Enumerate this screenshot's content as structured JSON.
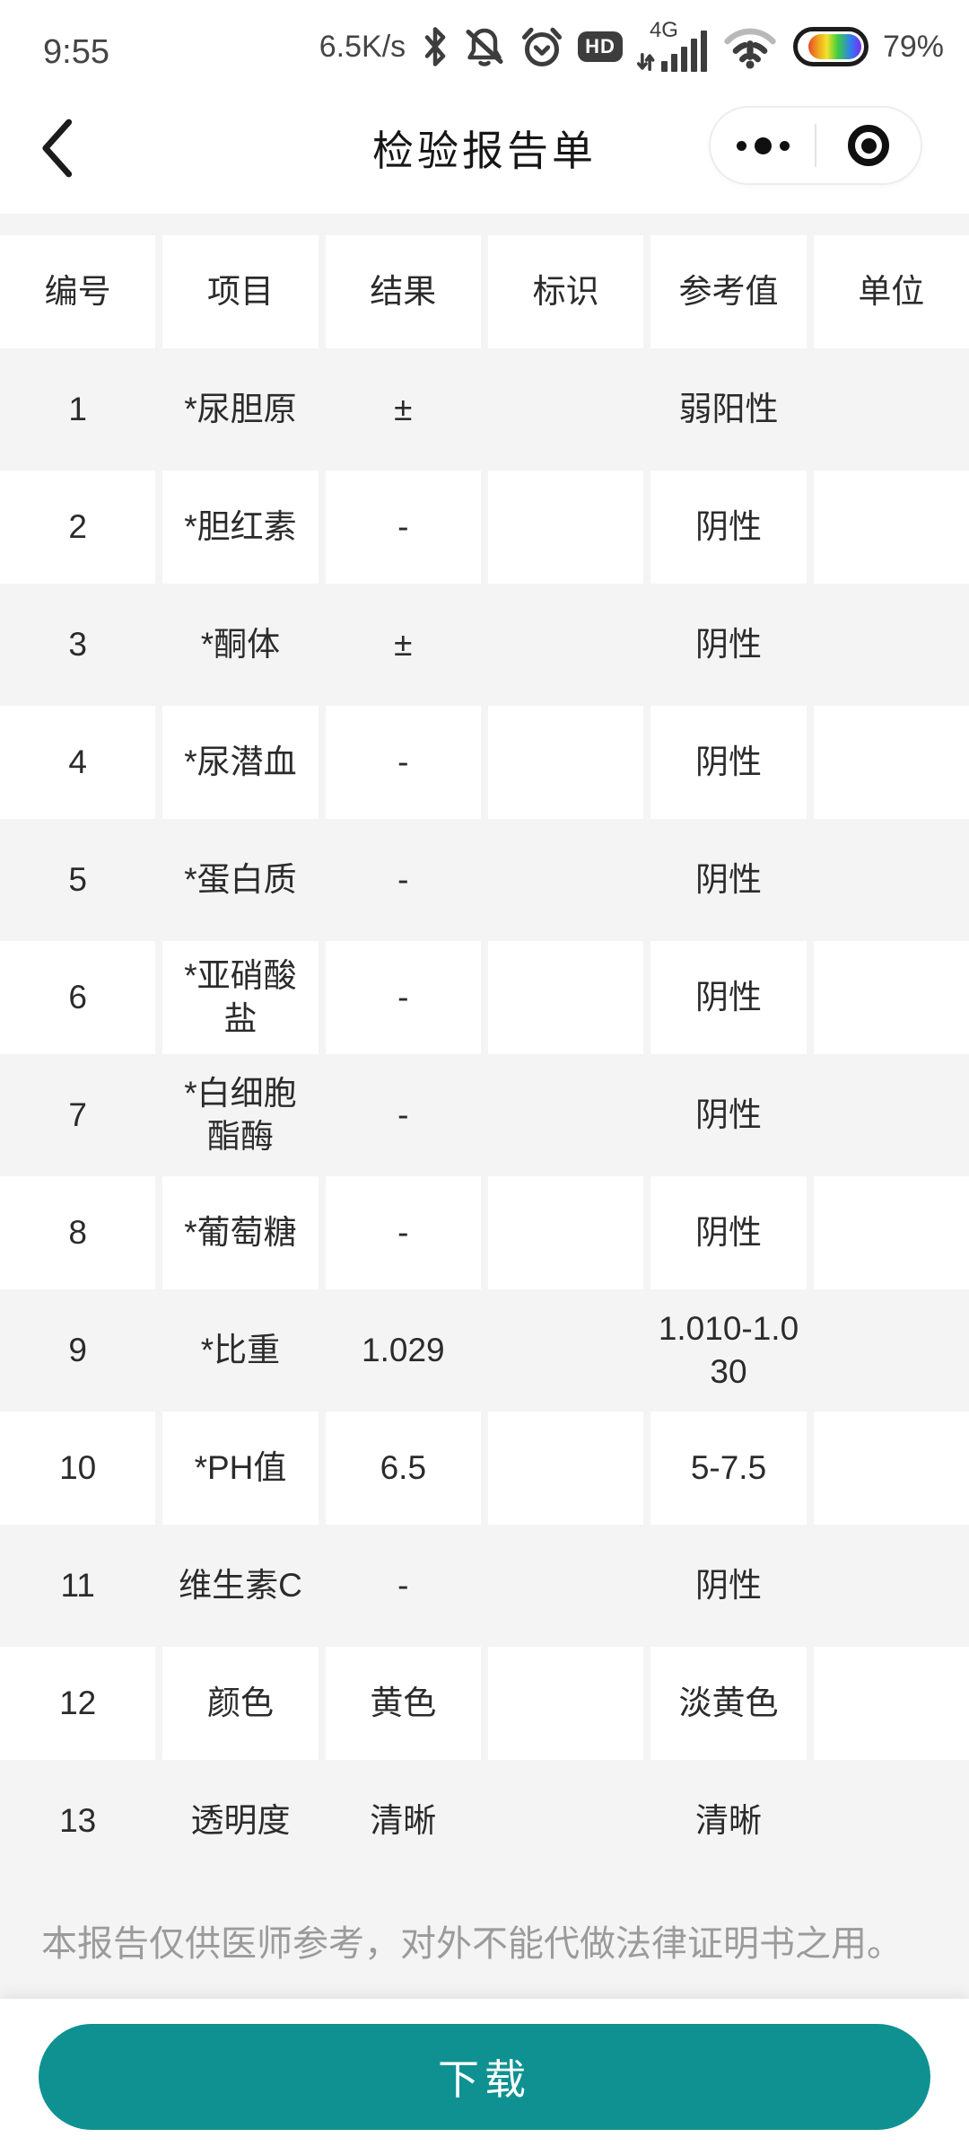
{
  "status_bar": {
    "time": "9:55",
    "net_speed": "6.5K/s",
    "network_label": "4G",
    "battery_percent": "79%",
    "icons": {
      "bluetooth": "bluetooth-icon",
      "mute": "muted-bell-icon",
      "alarm": "alarm-clock-icon",
      "hd": "HD",
      "signal": "signal-bars-icon",
      "wifi": "wifi-alert-icon",
      "battery": "battery-rainbow-icon"
    }
  },
  "nav": {
    "title": "检验报告单",
    "icons": {
      "back": "back-chevron-icon",
      "more": "more-dots-icon",
      "home": "target-circle-icon"
    }
  },
  "table": {
    "headers": [
      "编号",
      "项目",
      "结果",
      "标识",
      "参考值",
      "单位"
    ],
    "rows": [
      [
        "1",
        "*尿胆原",
        "±",
        "",
        "弱阳性",
        ""
      ],
      [
        "2",
        "*胆红素",
        "-",
        "",
        "阴性",
        ""
      ],
      [
        "3",
        "*酮体",
        "±",
        "",
        "阴性",
        ""
      ],
      [
        "4",
        "*尿潜血",
        "-",
        "",
        "阴性",
        ""
      ],
      [
        "5",
        "*蛋白质",
        "-",
        "",
        "阴性",
        ""
      ],
      [
        "6",
        "*亚硝酸盐",
        "-",
        "",
        "阴性",
        ""
      ],
      [
        "7",
        "*白细胞酯酶",
        "-",
        "",
        "阴性",
        ""
      ],
      [
        "8",
        "*葡萄糖",
        "-",
        "",
        "阴性",
        ""
      ],
      [
        "9",
        "*比重",
        "1.029",
        "",
        "1.010-1.030",
        ""
      ],
      [
        "10",
        "*PH值",
        "6.5",
        "",
        "5-7.5",
        ""
      ],
      [
        "11",
        "维生素C",
        "-",
        "",
        "阴性",
        ""
      ],
      [
        "12",
        "颜色",
        "黄色",
        "",
        "淡黄色",
        ""
      ],
      [
        "13",
        "透明度",
        "清晰",
        "",
        "清晰",
        ""
      ]
    ]
  },
  "footer": {
    "disclaimer": "本报告仅供医师参考，对外不能代做法律证明书之用。",
    "download_label": "下载"
  },
  "colors": {
    "accent_teal": "#0f9191",
    "page_bg": "#f4f4f5",
    "cell_bg": "#ffffff",
    "text_dark": "#2b2b2b",
    "text_muted": "#9b9b9b"
  }
}
